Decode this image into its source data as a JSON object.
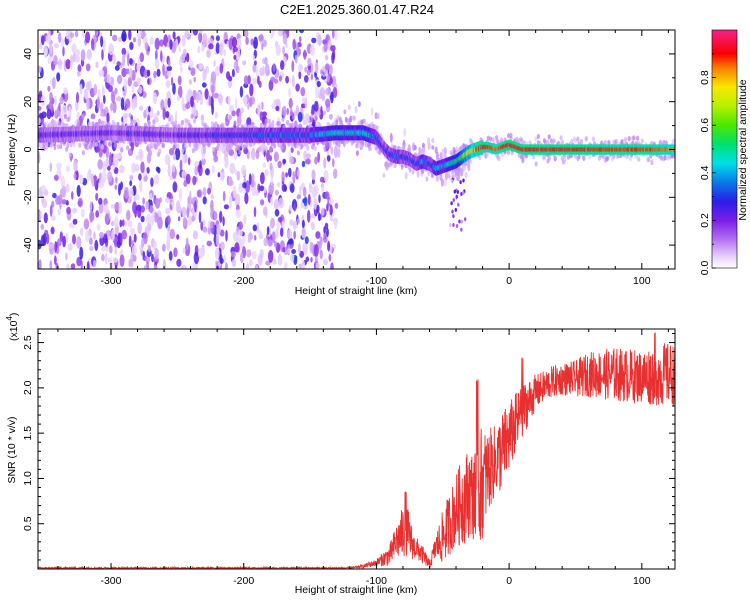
{
  "title": "C2E1.2025.360.01.47.R24",
  "chart_data": [
    {
      "type": "heatmap",
      "xlabel": "Height of straight line (km)",
      "ylabel": "Frequency (Hz)",
      "xlim": [
        -355,
        125
      ],
      "ylim": [
        -50,
        50
      ],
      "xticks": [
        -300,
        -200,
        -100,
        0,
        100
      ],
      "yticks": [
        -40,
        -20,
        0,
        20,
        40
      ],
      "colorbar": {
        "label": "Normalized spectral amplitude",
        "range": [
          0,
          1
        ],
        "ticks": [
          "0.0",
          "0.2",
          "0.4",
          "0.6",
          "0.8"
        ],
        "colormap": "rainbow (white-purple-blue-cyan-green-yellow-red-magenta)"
      },
      "ridge": {
        "description": "dominant frequency ridge vs height",
        "x": [
          -355,
          -300,
          -250,
          -200,
          -150,
          -130,
          -110,
          -100,
          -95,
          -90,
          -85,
          -80,
          -75,
          -70,
          -65,
          -60,
          -55,
          -50,
          -45,
          -40,
          -35,
          -30,
          -25,
          -20,
          -15,
          -10,
          -5,
          0,
          10,
          50,
          100,
          125
        ],
        "y": [
          6,
          7,
          6,
          6,
          6,
          7,
          7,
          5,
          1,
          -2,
          -3,
          -3,
          -4,
          -6,
          -5,
          -6,
          -8,
          -7,
          -6,
          -5,
          -3,
          -1,
          0,
          1,
          1,
          0,
          1,
          2,
          0,
          0,
          0,
          0
        ],
        "amplitude": [
          0.22,
          0.22,
          0.22,
          0.3,
          0.35,
          0.45,
          0.42,
          0.35,
          0.3,
          0.28,
          0.33,
          0.28,
          0.3,
          0.28,
          0.4,
          0.3,
          0.4,
          0.4,
          0.45,
          0.5,
          0.62,
          0.72,
          0.85,
          0.9,
          0.9,
          0.85,
          0.9,
          0.95,
          0.9,
          0.9,
          0.88,
          0.85
        ]
      },
      "noise_region_x": [
        -355,
        -130
      ]
    },
    {
      "type": "line",
      "xlabel": "Height of straight line (km)",
      "ylabel": "SNR (10 * v/v)",
      "y_multiplier_label": "(x10",
      "y_multiplier_exp": "4",
      "y_multiplier_close": ")",
      "xlim": [
        -355,
        125
      ],
      "ylim": [
        0,
        2.65
      ],
      "xticks": [
        -300,
        -200,
        -100,
        0,
        100
      ],
      "yticks": [
        "0.5",
        "1.0",
        "1.5",
        "2.0",
        "2.5"
      ],
      "series": [
        {
          "color": "#e83030",
          "envelope": {
            "x": [
              -355,
              -300,
              -200,
              -150,
              -120,
              -110,
              -100,
              -90,
              -85,
              -80,
              -78,
              -75,
              -72,
              -68,
              -65,
              -60,
              -55,
              -50,
              -45,
              -40,
              -35,
              -30,
              -25,
              -22,
              -20,
              -15,
              -10,
              -5,
              0,
              5,
              10,
              15,
              20,
              25,
              30,
              40,
              50,
              60,
              80,
              100,
              110,
              120,
              125
            ],
            "base": [
              0.01,
              0.01,
              0.01,
              0.01,
              0.01,
              0.03,
              0.07,
              0.15,
              0.3,
              0.4,
              0.45,
              0.35,
              0.25,
              0.2,
              0.15,
              0.05,
              0.25,
              0.35,
              0.5,
              0.65,
              0.75,
              0.85,
              0.8,
              0.9,
              0.95,
              1.1,
              1.2,
              1.3,
              1.45,
              1.6,
              1.75,
              1.85,
              1.95,
              2.0,
              2.05,
              2.1,
              2.1,
              2.15,
              2.15,
              2.12,
              2.15,
              2.15,
              2.15
            ],
            "noise": [
              0.01,
              0.01,
              0.01,
              0.01,
              0.01,
              0.02,
              0.04,
              0.12,
              0.2,
              0.3,
              0.35,
              0.25,
              0.15,
              0.12,
              0.1,
              0.05,
              0.15,
              0.3,
              0.35,
              0.4,
              0.5,
              0.5,
              0.5,
              0.7,
              0.6,
              0.45,
              0.4,
              0.45,
              0.4,
              0.35,
              0.3,
              0.25,
              0.2,
              0.18,
              0.18,
              0.18,
              0.2,
              0.25,
              0.3,
              0.3,
              0.35,
              0.35,
              0.35
            ]
          },
          "peaks": [
            {
              "x": -78,
              "y": 0.88
            },
            {
              "x": -24,
              "y": 2.1
            },
            {
              "x": 10,
              "y": 2.35
            },
            {
              "x": 110,
              "y": 2.65
            }
          ]
        }
      ]
    }
  ]
}
